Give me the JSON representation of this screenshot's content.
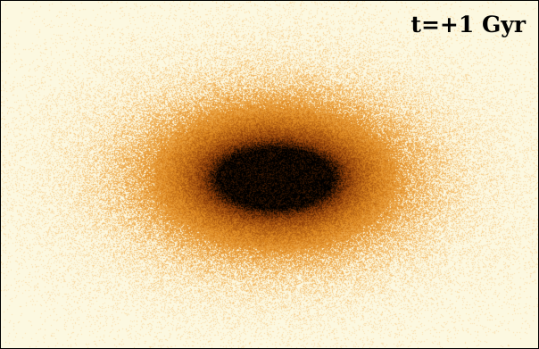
{
  "image": {
    "time_label": "t=+1 Gyr",
    "colors": {
      "background": "#fcf8e0",
      "outer": "#f5c070",
      "mid": "#e08a20",
      "inner": "#8a3a08",
      "core": "#000000",
      "border": "#000000"
    }
  }
}
